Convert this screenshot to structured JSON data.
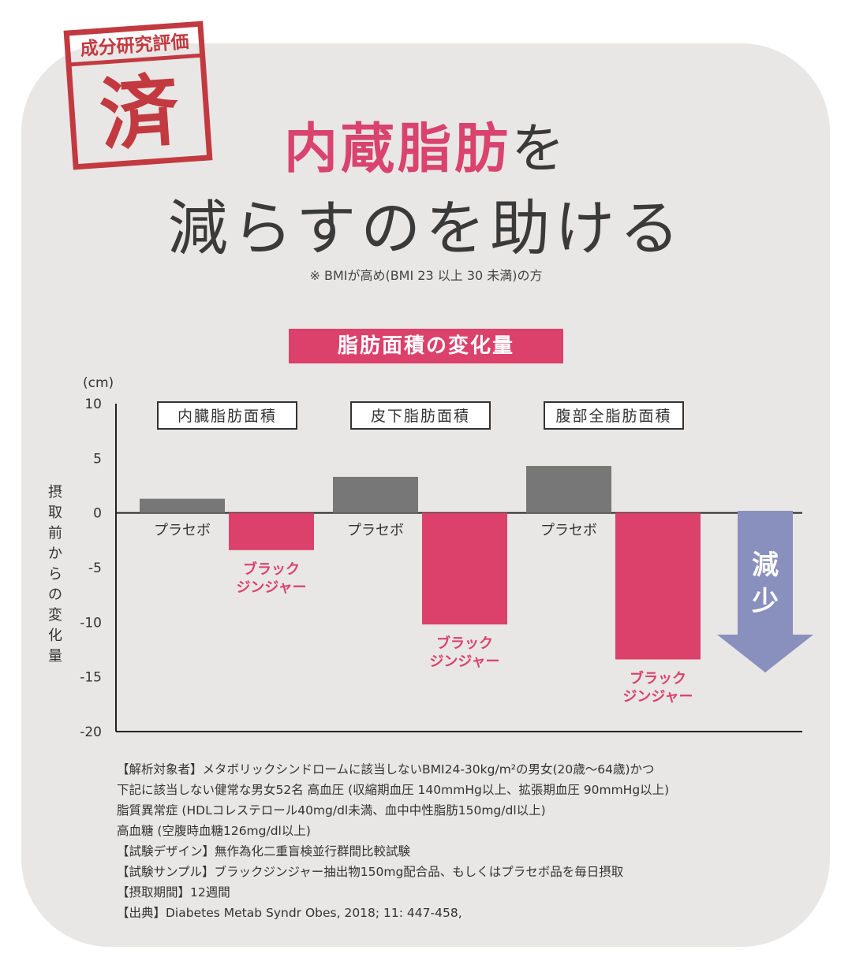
{
  "badge": {
    "top_text": "成分研究評価",
    "main_char": "済"
  },
  "header": {
    "title_highlight": "内蔵脂肪",
    "title_particle": "を",
    "title_line2": "減らすのを助ける",
    "note": "※ BMIが高め(BMI 23 以上 30 未満)の方"
  },
  "chart_banner": "脂肪面積の変化量",
  "colors": {
    "accent": "#dc416b",
    "placebo": "#777777",
    "arrow": "#8a90bd",
    "card": "#e8e7e6"
  },
  "chart_data": {
    "type": "bar",
    "unit": "(cm)",
    "ylabel": "摂取前からの変化量",
    "ylim": [
      -20,
      10
    ],
    "yticks": [
      10,
      5,
      0,
      -5,
      -10,
      -15,
      -20
    ],
    "grid": false,
    "groups": [
      "内臓脂肪面積",
      "皮下脂肪面積",
      "腹部全脂肪面積"
    ],
    "series": [
      {
        "name": "プラセボ",
        "values": [
          1.3,
          3.3,
          4.3
        ]
      },
      {
        "name": "ブラック ジンジャー",
        "values": [
          -3.4,
          -10.2,
          -13.4
        ]
      }
    ],
    "annotation": "減少"
  },
  "footnotes": [
    "【解析対象者】メタボリックシンドロームに該当しないBMI24-30kg/m²の男女(20歳〜64歳)かつ",
    "下記に該当しない健常な男女52名 高血圧 (収縮期血圧 140mmHg以上、拡張期血圧 90mmHg以上)",
    "脂質異常症 (HDLコレステロール40mg/dl未満、血中中性脂肪150mg/dl以上)",
    "高血糖 (空腹時血糖126mg/dl以上)",
    "【試験デザイン】無作為化二重盲検並行群間比較試験",
    "【試験サンプル】ブラックジンジャー抽出物150mg配合品、もしくはプラセボ品を毎日摂取",
    "【摂取期間】12週間",
    "【出典】Diabetes Metab Syndr Obes, 2018; 11: 447-458,"
  ]
}
